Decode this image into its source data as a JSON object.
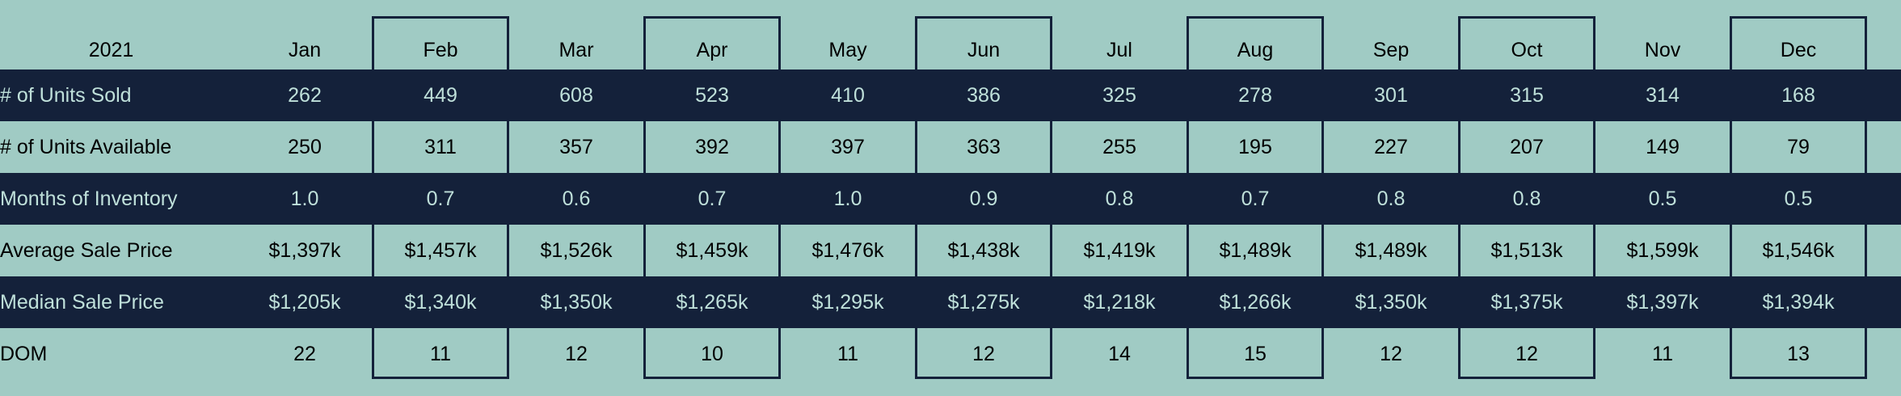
{
  "chart_data": {
    "type": "table",
    "year_label": "2021",
    "columns": [
      "Jan",
      "Feb",
      "Mar",
      "Apr",
      "May",
      "Jun",
      "Jul",
      "Aug",
      "Sep",
      "Oct",
      "Nov",
      "Dec"
    ],
    "rows": [
      {
        "label": "# of Units Sold",
        "values": [
          "262",
          "449",
          "608",
          "523",
          "410",
          "386",
          "325",
          "278",
          "301",
          "315",
          "314",
          "168"
        ]
      },
      {
        "label": "# of Units Available",
        "values": [
          "250",
          "311",
          "357",
          "392",
          "397",
          "363",
          "255",
          "195",
          "227",
          "207",
          "149",
          "79"
        ]
      },
      {
        "label": "Months of Inventory",
        "values": [
          "1.0",
          "0.7",
          "0.6",
          "0.7",
          "1.0",
          "0.9",
          "0.8",
          "0.7",
          "0.8",
          "0.8",
          "0.5",
          "0.5"
        ]
      },
      {
        "label": "Average Sale Price",
        "values": [
          "$1,397k",
          "$1,457k",
          "$1,526k",
          "$1,459k",
          "$1,476k",
          "$1,438k",
          "$1,419k",
          "$1,489k",
          "$1,489k",
          "$1,513k",
          "$1,599k",
          "$1,546k"
        ]
      },
      {
        "label": "Median Sale Price",
        "values": [
          "$1,205k",
          "$1,340k",
          "$1,350k",
          "$1,265k",
          "$1,295k",
          "$1,275k",
          "$1,218k",
          "$1,266k",
          "$1,350k",
          "$1,375k",
          "$1,397k",
          "$1,394k"
        ]
      },
      {
        "label": "DOM",
        "values": [
          "22",
          "11",
          "12",
          "10",
          "11",
          "12",
          "14",
          "15",
          "12",
          "12",
          "11",
          "13"
        ]
      }
    ],
    "colors": {
      "background": "#a0cbc4",
      "dark_band": "#14213a",
      "dark_band_text": "#bfe0da",
      "light_text": "#000000",
      "box_border": "#14213a"
    }
  }
}
